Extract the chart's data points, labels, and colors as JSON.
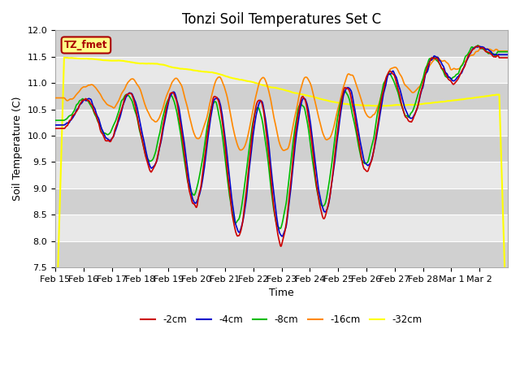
{
  "title": "Tonzi Soil Temperatures Set C",
  "xlabel": "Time",
  "ylabel": "Soil Temperature (C)",
  "ylim": [
    7.5,
    12.0
  ],
  "yticks": [
    7.5,
    8.0,
    8.5,
    9.0,
    9.5,
    10.0,
    10.5,
    11.0,
    11.5,
    12.0
  ],
  "line_colors": {
    "-2cm": "#cc0000",
    "-4cm": "#0000cc",
    "-8cm": "#00bb00",
    "-16cm": "#ff8800",
    "-32cm": "#ffff00"
  },
  "xtick_labels": [
    "Feb 15",
    "Feb 16",
    "Feb 17",
    "Feb 18",
    "Feb 19",
    "Feb 20",
    "Feb 21",
    "Feb 22",
    "Feb 23",
    "Feb 24",
    "Feb 25",
    "Feb 26",
    "Feb 27",
    "Feb 28",
    "Mar 1",
    "Mar 2"
  ],
  "annotation_text": "TZ_fmet",
  "annotation_bg": "#ffff88",
  "annotation_border": "#aa0000",
  "title_fontsize": 12,
  "label_fontsize": 9,
  "tick_fontsize": 8,
  "fig_bg": "#ffffff",
  "plot_bg": "#e8e8e8",
  "band_dark": "#d0d0d0",
  "band_light": "#e8e8e8"
}
